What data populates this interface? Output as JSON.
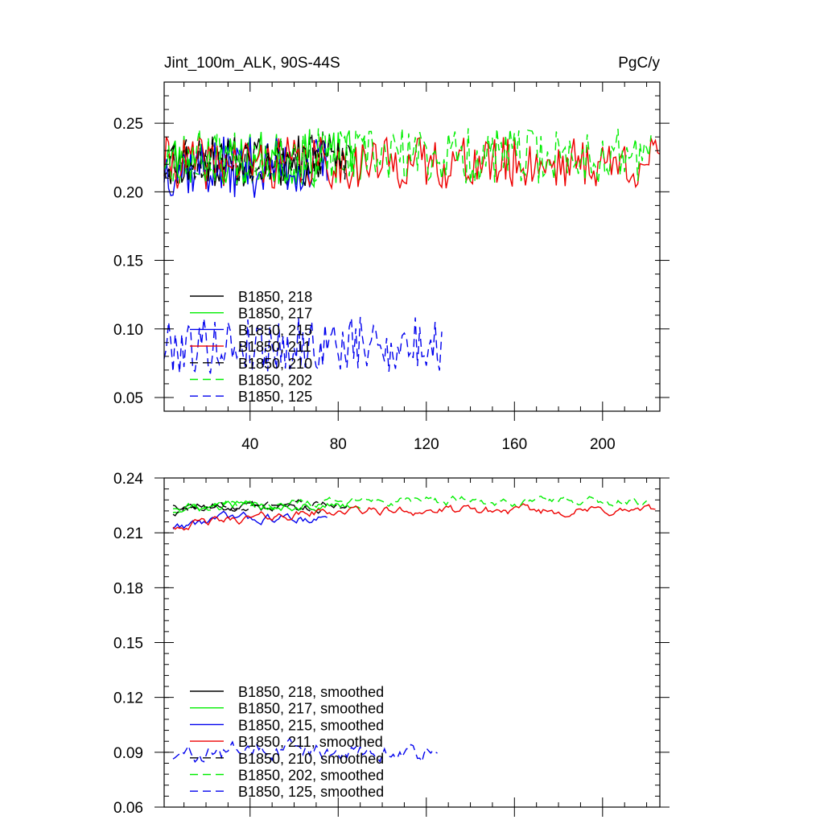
{
  "chart_data": [
    {
      "type": "line",
      "title": "Jint_100m_ALK, 90S-44S",
      "units": "PgC/y",
      "xlabel": "",
      "ylabel": "",
      "xlim": [
        1,
        226
      ],
      "ylim": [
        0.04,
        0.28
      ],
      "xticks": [
        40,
        80,
        120,
        160,
        200
      ],
      "xtick_labels": [
        "40",
        "80",
        "120",
        "160",
        "200"
      ],
      "yticks": [
        0.05,
        0.1,
        0.15,
        0.2,
        0.25
      ],
      "ytick_labels": [
        "0.05",
        "0.10",
        "0.15",
        "0.20",
        "0.25"
      ],
      "grid": false,
      "legend": "lower-left",
      "series": [
        {
          "name": "B1850, 218",
          "color": "#000000",
          "dash": "solid",
          "x_start": 1,
          "x_end": 72,
          "mean": 0.222,
          "amplitude": 0.012,
          "seed": 11
        },
        {
          "name": "B1850, 217",
          "color": "#00ee00",
          "dash": "solid",
          "x_start": 1,
          "x_end": 92,
          "mean": 0.224,
          "amplitude": 0.013,
          "seed": 23
        },
        {
          "name": "B1850, 215",
          "color": "#0000ee",
          "dash": "solid",
          "x_start": 1,
          "x_end": 75,
          "mean": 0.218,
          "amplitude": 0.014,
          "seed": 37
        },
        {
          "name": "B1850, 211",
          "color": "#ee0000",
          "dash": "solid",
          "x_start": 1,
          "x_end": 226,
          "mean": 0.221,
          "amplitude": 0.012,
          "seed": 41
        },
        {
          "name": "B1850, 210",
          "color": "#000000",
          "dash": "dashed",
          "x_start": 1,
          "x_end": 86,
          "mean": 0.225,
          "amplitude": 0.012,
          "seed": 53
        },
        {
          "name": "B1850, 202",
          "color": "#00ee00",
          "dash": "dashed",
          "x_start": 1,
          "x_end": 222,
          "mean": 0.226,
          "amplitude": 0.013,
          "seed": 67
        },
        {
          "name": "B1850, 125",
          "color": "#0000ee",
          "dash": "dashed",
          "x_start": 1,
          "x_end": 127,
          "mean": 0.088,
          "amplitude": 0.013,
          "seed": 79
        }
      ]
    },
    {
      "type": "line",
      "title": "",
      "xlabel": "",
      "ylabel": "",
      "xlim": [
        1,
        226
      ],
      "ylim": [
        0.06,
        0.24
      ],
      "xticks": [
        40,
        80,
        120,
        160,
        200
      ],
      "yticks": [
        0.06,
        0.09,
        0.12,
        0.15,
        0.18,
        0.21,
        0.24
      ],
      "ytick_labels": [
        "0.06",
        "0.09",
        "0.12",
        "0.15",
        "0.18",
        "0.21",
        "0.24"
      ],
      "grid": false,
      "legend": "lower-left",
      "series": [
        {
          "name": "B1850, 218, smoothed",
          "color": "#000000",
          "dash": "solid",
          "x_start": 5,
          "x_end": 72,
          "mean": 0.224,
          "amplitude": 0.002,
          "seed": 12,
          "trend_start": 0.226
        },
        {
          "name": "B1850, 217, smoothed",
          "color": "#00ee00",
          "dash": "solid",
          "x_start": 5,
          "x_end": 90,
          "mean": 0.225,
          "amplitude": 0.002,
          "seed": 24,
          "trend_start": 0.222
        },
        {
          "name": "B1850, 215, smoothed",
          "color": "#0000ee",
          "dash": "solid",
          "x_start": 5,
          "x_end": 75,
          "mean": 0.218,
          "amplitude": 0.002,
          "seed": 38,
          "trend_start": 0.213
        },
        {
          "name": "B1850, 211, smoothed",
          "color": "#ee0000",
          "dash": "solid",
          "x_start": 5,
          "x_end": 224,
          "mean": 0.222,
          "amplitude": 0.002,
          "seed": 42,
          "trend_start": 0.214
        },
        {
          "name": "B1850, 210, smoothed",
          "color": "#000000",
          "dash": "dashed",
          "x_start": 5,
          "x_end": 84,
          "mean": 0.225,
          "amplitude": 0.002,
          "seed": 54,
          "trend_start": 0.221
        },
        {
          "name": "B1850, 202, smoothed",
          "color": "#00ee00",
          "dash": "dashed",
          "x_start": 5,
          "x_end": 220,
          "mean": 0.227,
          "amplitude": 0.002,
          "seed": 68,
          "trend_start": 0.224
        },
        {
          "name": "B1850, 125, smoothed",
          "color": "#0000ee",
          "dash": "dashed",
          "x_start": 5,
          "x_end": 125,
          "mean": 0.09,
          "amplitude": 0.004,
          "seed": 80,
          "trend_start": 0.088
        }
      ]
    }
  ]
}
